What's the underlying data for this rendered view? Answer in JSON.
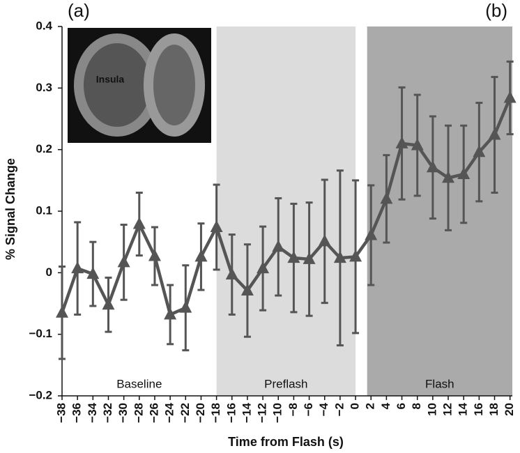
{
  "chart_data": {
    "type": "line",
    "x_label": "Time from Flash (s)",
    "y_label": "% Signal Change",
    "panel_labels": [
      "(a)",
      "(b)"
    ],
    "inset_label": "Insula",
    "x": [
      -38,
      -36,
      -34,
      -32,
      -30,
      -28,
      -26,
      -24,
      -22,
      -20,
      -18,
      -16,
      -14,
      -12,
      -10,
      -8,
      -6,
      -4,
      -2,
      0,
      2,
      4,
      6,
      8,
      10,
      12,
      14,
      16,
      18,
      20
    ],
    "series": [
      {
        "color": "#555555",
        "values": [
          -0.065,
          0.007,
          -0.002,
          -0.052,
          0.017,
          0.079,
          0.027,
          -0.068,
          -0.057,
          0.026,
          0.074,
          -0.003,
          -0.029,
          0.007,
          0.042,
          0.024,
          0.022,
          0.051,
          0.024,
          0.026,
          0.061,
          0.12,
          0.21,
          0.207,
          0.171,
          0.154,
          0.16,
          0.196,
          0.224,
          0.284
        ],
        "errors": [
          0.075,
          0.075,
          0.052,
          0.044,
          0.061,
          0.051,
          0.047,
          0.048,
          0.069,
          0.054,
          0.069,
          0.065,
          0.075,
          0.068,
          0.079,
          0.088,
          0.092,
          0.1,
          0.142,
          0.124,
          0.081,
          0.071,
          0.091,
          0.082,
          0.083,
          0.085,
          0.079,
          0.08,
          0.094,
          0.059
        ]
      }
    ],
    "regions": [
      {
        "label": "Baseline",
        "start": -38,
        "end": -18,
        "color": "#ffffff"
      },
      {
        "label": "Preflash",
        "start": -18,
        "end": 0,
        "color": "#dcdcdc"
      },
      {
        "label": "Flash",
        "start": 1.5,
        "end": 20.3,
        "color": "#aaaaaa"
      }
    ],
    "xlim": [
      -38,
      20.3
    ],
    "ylim": [
      -0.2,
      0.4
    ],
    "yticks": [
      {
        "value": -0.2,
        "label": "−0.2"
      },
      {
        "value": -0.1,
        "label": "−0.1"
      },
      0,
      0.1,
      0.2,
      0.3,
      0.4
    ],
    "xticks": [
      {
        "value": -38,
        "label": "−38"
      },
      {
        "value": -36,
        "label": "−36"
      },
      {
        "value": -34,
        "label": "−34"
      },
      {
        "value": -32,
        "label": "−32"
      },
      {
        "value": -30,
        "label": "−30"
      },
      {
        "value": -28,
        "label": "−28"
      },
      {
        "value": -26,
        "label": "−26"
      },
      {
        "value": -24,
        "label": "−24"
      },
      {
        "value": -22,
        "label": "−22"
      },
      {
        "value": -20,
        "label": "−20"
      },
      {
        "value": -18,
        "label": "−18"
      },
      {
        "value": -16,
        "label": "−16"
      },
      {
        "value": -14,
        "label": "−14"
      },
      {
        "value": -12,
        "label": "−12"
      },
      {
        "value": -10,
        "label": "−10"
      },
      {
        "value": -8,
        "label": "−8"
      },
      {
        "value": -6,
        "label": "−6"
      },
      {
        "value": -4,
        "label": "−4"
      },
      {
        "value": -2,
        "label": "−2"
      },
      0,
      2,
      4,
      6,
      8,
      10,
      12,
      14,
      16,
      18,
      20
    ]
  }
}
